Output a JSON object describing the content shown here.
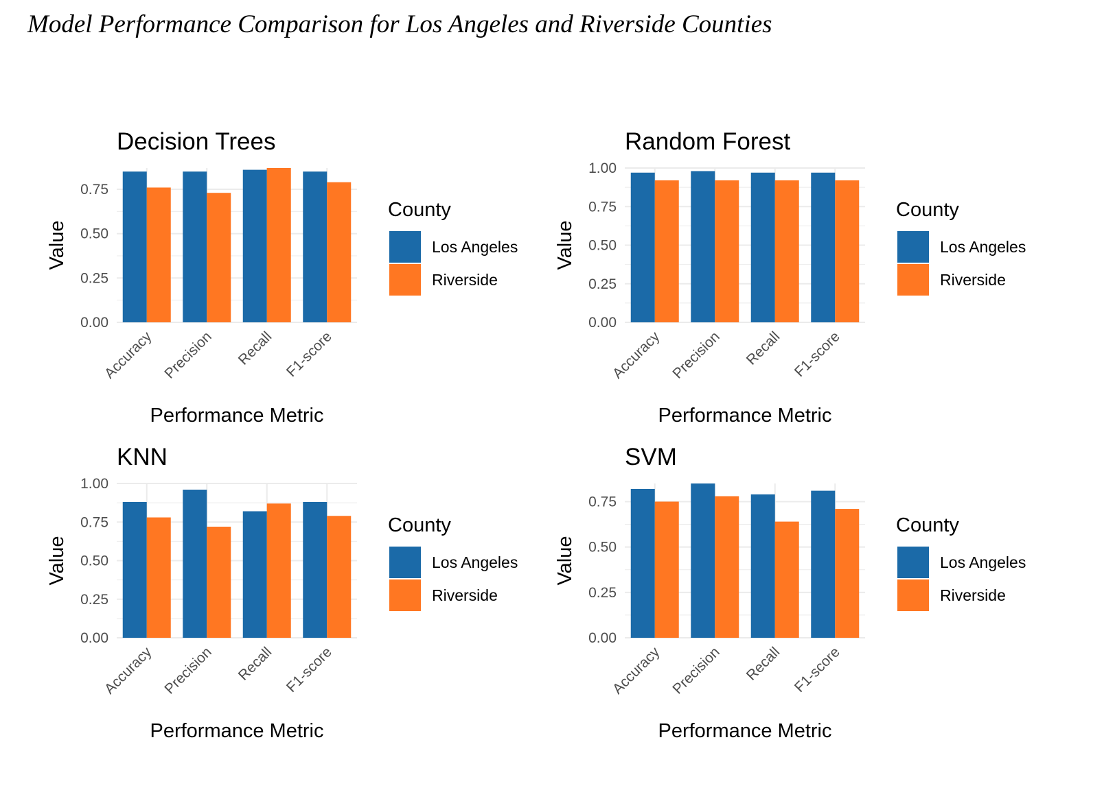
{
  "title": "Model Performance Comparison for Los Angeles and Riverside Counties",
  "colors": {
    "los_angeles": "#1b6aa8",
    "riverside": "#ff7722",
    "grid": "#ebebeb"
  },
  "chart_data": [
    {
      "type": "bar",
      "title": "Decision Trees",
      "xlabel": "Performance Metric",
      "ylabel": "Value",
      "legend_title": "County",
      "legend_position": "right",
      "categories": [
        "Accuracy",
        "Precision",
        "Recall",
        "F1-score"
      ],
      "series": [
        {
          "name": "Los Angeles",
          "values": [
            0.85,
            0.85,
            0.86,
            0.85
          ]
        },
        {
          "name": "Riverside",
          "values": [
            0.76,
            0.73,
            0.87,
            0.79
          ]
        }
      ],
      "ylim": [
        0,
        0.87
      ],
      "yticks": [
        0.0,
        0.25,
        0.5,
        0.75
      ],
      "ytick_labels": [
        "0.00",
        "0.25",
        "0.50",
        "0.75"
      ],
      "grid": true
    },
    {
      "type": "bar",
      "title": "Random Forest",
      "xlabel": "Performance Metric",
      "ylabel": "Value",
      "legend_title": "County",
      "legend_position": "right",
      "categories": [
        "Accuracy",
        "Precision",
        "Recall",
        "F1-score"
      ],
      "series": [
        {
          "name": "Los Angeles",
          "values": [
            0.97,
            0.98,
            0.97,
            0.97
          ]
        },
        {
          "name": "Riverside",
          "values": [
            0.92,
            0.92,
            0.92,
            0.92
          ]
        }
      ],
      "ylim": [
        0,
        1.0
      ],
      "yticks": [
        0.0,
        0.25,
        0.5,
        0.75,
        1.0
      ],
      "ytick_labels": [
        "0.00",
        "0.25",
        "0.50",
        "0.75",
        "1.00"
      ],
      "grid": true
    },
    {
      "type": "bar",
      "title": "KNN",
      "xlabel": "Performance Metric",
      "ylabel": "Value",
      "legend_title": "County",
      "legend_position": "right",
      "categories": [
        "Accuracy",
        "Precision",
        "Recall",
        "F1-score"
      ],
      "series": [
        {
          "name": "Los Angeles",
          "values": [
            0.88,
            0.96,
            0.82,
            0.88
          ]
        },
        {
          "name": "Riverside",
          "values": [
            0.78,
            0.72,
            0.87,
            0.79
          ]
        }
      ],
      "ylim": [
        0,
        1.0
      ],
      "yticks": [
        0.0,
        0.25,
        0.5,
        0.75,
        1.0
      ],
      "ytick_labels": [
        "0.00",
        "0.25",
        "0.50",
        "0.75",
        "1.00"
      ],
      "grid": true
    },
    {
      "type": "bar",
      "title": "SVM",
      "xlabel": "Performance Metric",
      "ylabel": "Value",
      "legend_title": "County",
      "legend_position": "right",
      "categories": [
        "Accuracy",
        "Precision",
        "Recall",
        "F1-score"
      ],
      "series": [
        {
          "name": "Los Angeles",
          "values": [
            0.82,
            0.85,
            0.79,
            0.81
          ]
        },
        {
          "name": "Riverside",
          "values": [
            0.75,
            0.78,
            0.64,
            0.71
          ]
        }
      ],
      "ylim": [
        0,
        0.85
      ],
      "yticks": [
        0.0,
        0.25,
        0.5,
        0.75
      ],
      "ytick_labels": [
        "0.00",
        "0.25",
        "0.50",
        "0.75"
      ],
      "grid": true
    }
  ]
}
